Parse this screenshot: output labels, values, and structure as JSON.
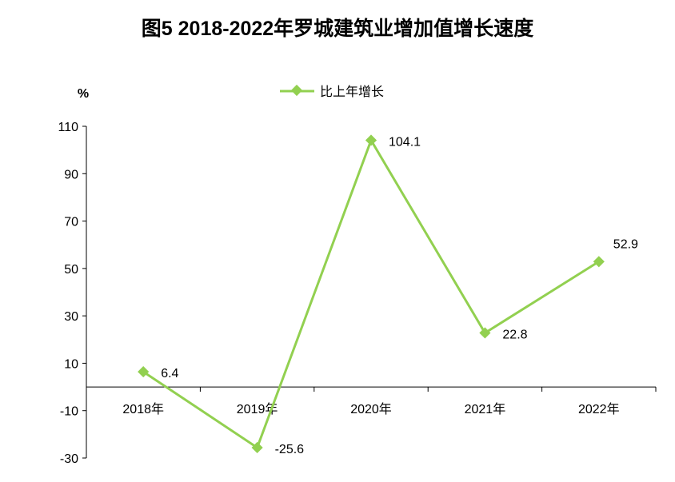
{
  "chart_data": {
    "type": "line",
    "title": "图5  2018-2022年罗城建筑业增加值增长速度",
    "ylabel": "%",
    "xlabel": "",
    "categories": [
      "2018年",
      "2019年",
      "2020年",
      "2021年",
      "2022年"
    ],
    "series": [
      {
        "name": "比上年增长",
        "values": [
          6.4,
          -25.6,
          104.1,
          22.8,
          52.9
        ],
        "labels": [
          "6.4",
          "-25.6",
          "104.1",
          "22.8",
          "52.9"
        ]
      }
    ],
    "ylim": [
      -30,
      110
    ],
    "yticks": [
      -30,
      -10,
      10,
      30,
      50,
      70,
      90,
      110
    ],
    "grid": false,
    "legend": "top-center",
    "color": "#92d050"
  }
}
